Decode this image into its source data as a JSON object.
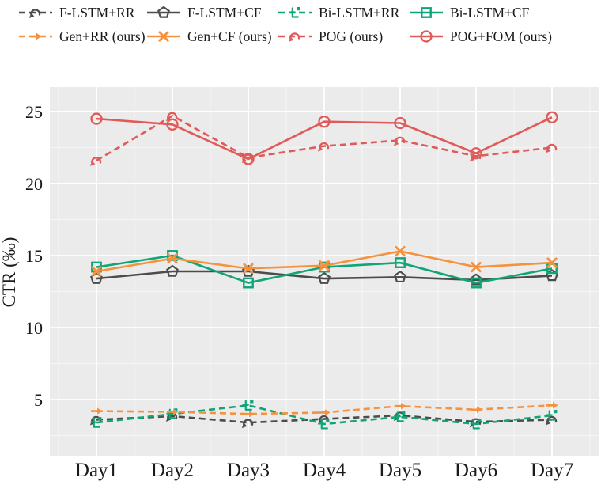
{
  "figure": {
    "background": "#ffffff",
    "plot_background": "#ebebeb",
    "major_grid_color": "#ffffff",
    "minor_grid_color": "#f5f5f5",
    "text_color": "#1a1a1a"
  },
  "chart_data": {
    "type": "line",
    "title": "",
    "xlabel": "",
    "ylabel": "CTR (‰)",
    "categories": [
      "Day1",
      "Day2",
      "Day3",
      "Day4",
      "Day5",
      "Day6",
      "Day7"
    ],
    "y_ticks": [
      5,
      10,
      15,
      20,
      25
    ],
    "y_minor_ticks": [
      2.5,
      7.5,
      12.5,
      17.5,
      22.5
    ],
    "ylim": [
      1.1,
      26.7
    ],
    "grid": "major white gridlines + lighter minor gridlines on gray panel",
    "legend_position": "top, two rows, four columns, outside plot area",
    "series": [
      {
        "name": "F-LSTM+RR",
        "color": "#4c4c4c",
        "line": "dashed",
        "marker": "hook-arrow",
        "values": [
          3.6,
          3.85,
          3.4,
          3.65,
          3.9,
          3.45,
          3.6
        ]
      },
      {
        "name": "F-LSTM+CF",
        "color": "#4c4c4c",
        "line": "solid",
        "marker": "pentagon",
        "values": [
          13.4,
          13.9,
          13.9,
          13.4,
          13.5,
          13.3,
          13.6
        ]
      },
      {
        "name": "Bi-LSTM+RR",
        "color": "#0fa578",
        "line": "dashed",
        "marker": "bracket",
        "values": [
          3.4,
          4.0,
          4.6,
          3.3,
          3.8,
          3.3,
          3.9
        ]
      },
      {
        "name": "Bi-LSTM+CF",
        "color": "#0fa578",
        "line": "solid",
        "marker": "square",
        "values": [
          14.2,
          15.0,
          13.1,
          14.2,
          14.5,
          13.1,
          14.1
        ]
      },
      {
        "name": "Gen+RR (ours)",
        "color": "#f6913e",
        "line": "dashed",
        "marker": "arrow",
        "values": [
          4.2,
          4.15,
          4.0,
          4.1,
          4.55,
          4.3,
          4.6
        ]
      },
      {
        "name": "Gen+CF (ours)",
        "color": "#f6913e",
        "line": "solid",
        "marker": "x",
        "values": [
          13.9,
          14.8,
          14.1,
          14.3,
          15.3,
          14.2,
          14.5
        ]
      },
      {
        "name": "POG (ours)",
        "color": "#e15a5a",
        "line": "dashed",
        "marker": "hook-arrow",
        "values": [
          21.6,
          24.7,
          21.8,
          22.6,
          23.0,
          21.9,
          22.5
        ]
      },
      {
        "name": "POG+FOM (ours)",
        "color": "#e15a5a",
        "line": "solid",
        "marker": "circle",
        "values": [
          24.5,
          24.1,
          21.7,
          24.3,
          24.2,
          22.1,
          24.6
        ]
      }
    ]
  }
}
